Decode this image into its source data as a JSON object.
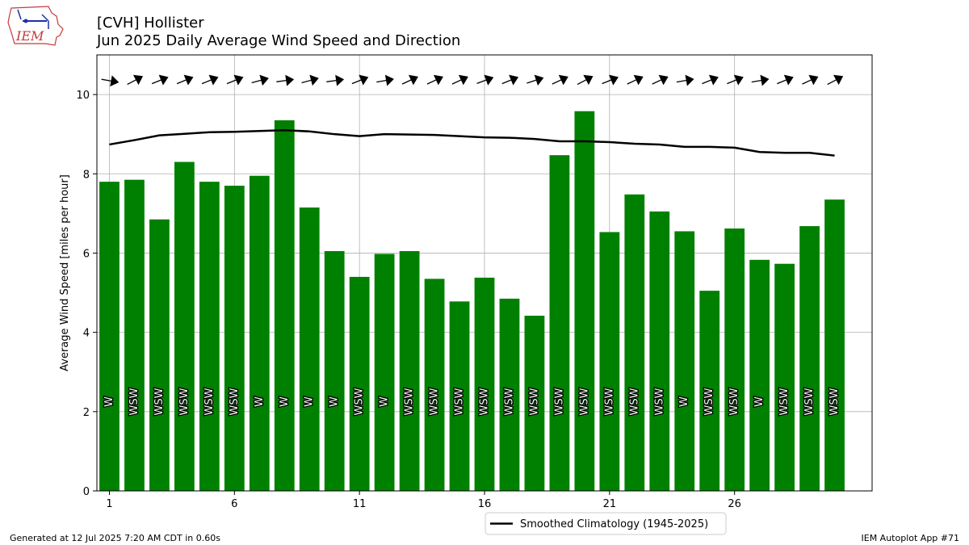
{
  "chart_data": {
    "type": "bar",
    "title": "[CVH] Hollister",
    "subtitle": "Jun 2025 Daily Average Wind Speed and Direction",
    "ylabel": "Average Wind Speed [miles per hour]",
    "xlabel": "",
    "xlim": [
      0.5,
      31.5
    ],
    "ylim": [
      0,
      11
    ],
    "xticks": [
      1,
      6,
      11,
      16,
      21,
      26
    ],
    "yticks": [
      0,
      2,
      4,
      6,
      8,
      10
    ],
    "grid": true,
    "legend_position": "bottom-center",
    "bar_color": "#008000",
    "line_color": "#000000",
    "days": [
      1,
      2,
      3,
      4,
      5,
      6,
      7,
      8,
      9,
      10,
      11,
      12,
      13,
      14,
      15,
      16,
      17,
      18,
      19,
      20,
      21,
      22,
      23,
      24,
      25,
      26,
      27,
      28,
      29,
      30
    ],
    "values": [
      7.8,
      7.85,
      6.85,
      8.3,
      7.8,
      7.7,
      7.95,
      9.35,
      7.15,
      6.05,
      5.4,
      5.98,
      6.05,
      5.35,
      4.78,
      5.38,
      4.85,
      4.42,
      8.47,
      9.58,
      6.53,
      7.48,
      7.05,
      6.55,
      5.05,
      6.62,
      5.83,
      5.73,
      6.68,
      7.35
    ],
    "directions": [
      "W",
      "WSW",
      "WSW",
      "WSW",
      "WSW",
      "WSW",
      "W",
      "W",
      "W",
      "W",
      "WSW",
      "W",
      "WSW",
      "WSW",
      "WSW",
      "WSW",
      "WSW",
      "WSW",
      "WSW",
      "WSW",
      "WSW",
      "WSW",
      "WSW",
      "W",
      "WSW",
      "WSW",
      "W",
      "WSW",
      "WSW",
      "WSW"
    ],
    "arrow_angles_deg": [
      10,
      -28,
      -22,
      -22,
      -22,
      -22,
      -15,
      -8,
      -15,
      -8,
      -22,
      -10,
      -25,
      -25,
      -25,
      -20,
      -22,
      -18,
      -25,
      -28,
      -22,
      -25,
      -25,
      -10,
      -22,
      -22,
      -10,
      -22,
      -25,
      -28
    ],
    "series": [
      {
        "name": "Smoothed Climatology (1945-2025)",
        "type": "line",
        "values": [
          8.74,
          8.85,
          8.97,
          9.01,
          9.05,
          9.06,
          9.08,
          9.1,
          9.07,
          9.0,
          8.95,
          9.0,
          8.99,
          8.98,
          8.95,
          8.92,
          8.91,
          8.88,
          8.82,
          8.82,
          8.8,
          8.76,
          8.74,
          8.68,
          8.68,
          8.66,
          8.55,
          8.53,
          8.53,
          8.46
        ]
      }
    ]
  },
  "logo_text": "IEM",
  "footer": {
    "left": "Generated at 12 Jul 2025 7:20 AM CDT in 0.60s",
    "right": "IEM Autoplot App #71"
  }
}
